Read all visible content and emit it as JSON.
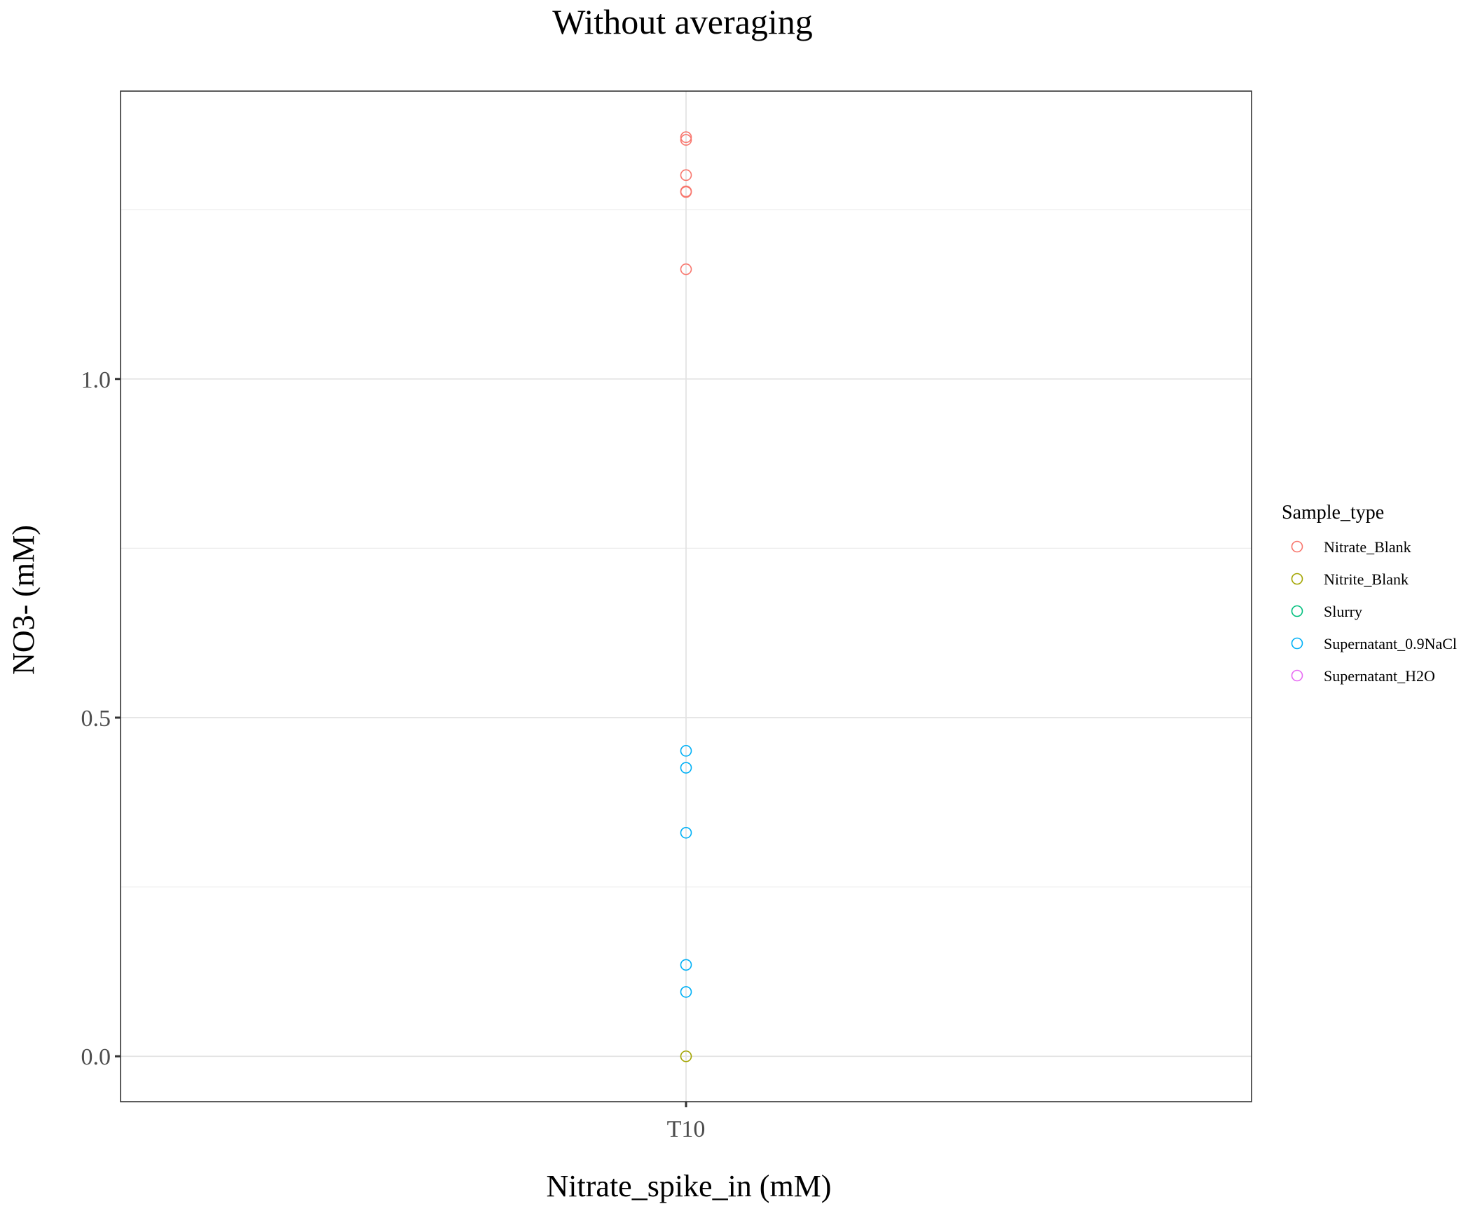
{
  "chart_data": {
    "type": "scatter",
    "title": "Without averaging",
    "xlabel": "Nitrate_spike_in (mM)",
    "ylabel": "NO3- (mM)",
    "categories": [
      "T10"
    ],
    "ylim": [
      -0.067,
      1.425
    ],
    "y_ticks": [
      {
        "value": 0.0,
        "label": "0.0"
      },
      {
        "value": 0.5,
        "label": "0.5"
      },
      {
        "value": 1.0,
        "label": "1.0"
      }
    ],
    "y_minor_gridlines": [
      0.25,
      0.75,
      1.25
    ],
    "grid": true,
    "legend": {
      "title": "Sample_type",
      "position": "right"
    },
    "series": [
      {
        "name": "Nitrate_Blank",
        "color": "#F8766D",
        "points": [
          {
            "x": "T10",
            "y": 1.357
          },
          {
            "x": "T10",
            "y": 1.353
          },
          {
            "x": "T10",
            "y": 1.301
          },
          {
            "x": "T10",
            "y": 1.277
          },
          {
            "x": "T10",
            "y": 1.276
          },
          {
            "x": "T10",
            "y": 1.162
          }
        ]
      },
      {
        "name": "Nitrite_Blank",
        "color": "#A3A500",
        "points": [
          {
            "x": "T10",
            "y": 0.0
          }
        ]
      },
      {
        "name": "Slurry",
        "color": "#00BF7D",
        "points": []
      },
      {
        "name": "Supernatant_0.9NaCl",
        "color": "#00B0F6",
        "points": [
          {
            "x": "T10",
            "y": 0.451
          },
          {
            "x": "T10",
            "y": 0.426
          },
          {
            "x": "T10",
            "y": 0.33
          },
          {
            "x": "T10",
            "y": 0.135
          },
          {
            "x": "T10",
            "y": 0.095
          }
        ]
      },
      {
        "name": "Supernatant_H2O",
        "color": "#E76BF3",
        "points": []
      }
    ]
  }
}
